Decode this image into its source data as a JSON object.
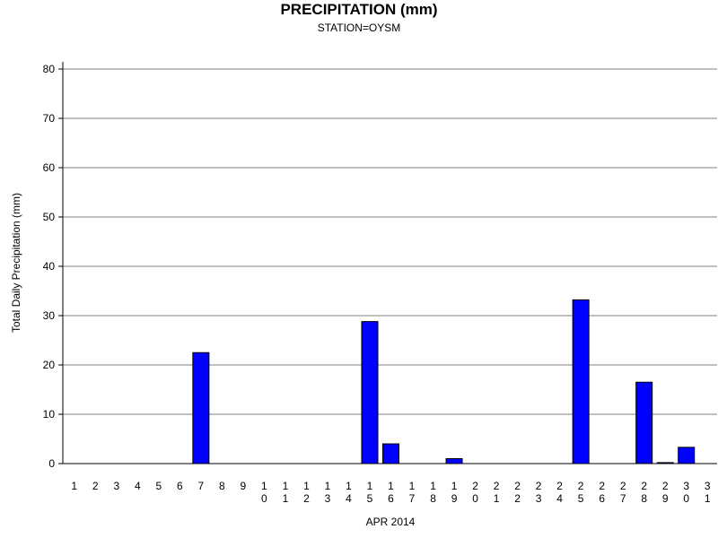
{
  "chart_data": {
    "type": "bar",
    "title": "PRECIPITATION (mm)",
    "subtitle": "STATION=OYSM",
    "xlabel": "APR 2014",
    "ylabel": "Total Daily Precipitation (mm)",
    "ylim": [
      0,
      80
    ],
    "yticks": [
      "0",
      "10",
      "20",
      "30",
      "40",
      "50",
      "60",
      "70",
      "80"
    ],
    "grid": true,
    "bar_color": "#0000ff",
    "categories": [
      "1",
      "2",
      "3",
      "4",
      "5",
      "6",
      "7",
      "8",
      "9",
      "10",
      "11",
      "12",
      "13",
      "14",
      "15",
      "16",
      "17",
      "18",
      "19",
      "20",
      "21",
      "22",
      "23",
      "24",
      "25",
      "26",
      "27",
      "28",
      "29",
      "30",
      "31"
    ],
    "values": [
      0,
      0,
      0,
      0,
      0,
      0,
      22.5,
      0,
      0,
      0,
      0,
      0,
      0,
      0,
      28.8,
      4.0,
      0,
      0,
      1.0,
      0,
      0,
      0,
      0,
      0,
      33.2,
      0,
      0,
      16.5,
      0.2,
      3.3,
      null
    ]
  }
}
